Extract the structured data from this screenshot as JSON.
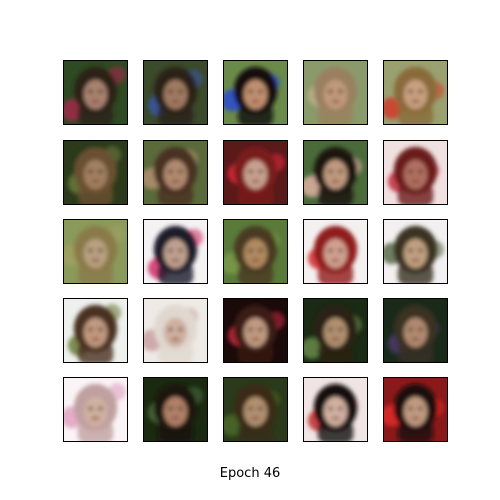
{
  "caption": "Epoch 46",
  "grid": {
    "rows": 5,
    "cols": 5
  },
  "samples": [
    {
      "bg": "#2e4a22",
      "accent": "#a02a4a",
      "hair": "#2a2016",
      "skin": "#a88270"
    },
    {
      "bg": "#3a4a2a",
      "accent": "#3a55a0",
      "hair": "#2a2018",
      "skin": "#a07a62"
    },
    {
      "bg": "#6a8a4a",
      "accent": "#2a4ad0",
      "hair": "#141010",
      "skin": "#c09070"
    },
    {
      "bg": "#8a9a6a",
      "accent": "#c0b090",
      "hair": "#9a8060",
      "skin": "#c09a7a"
    },
    {
      "bg": "#9aa070",
      "accent": "#d03a2a",
      "hair": "#8a6a3a",
      "skin": "#c8a080"
    },
    {
      "bg": "#2a3a1a",
      "accent": "#6a7a3a",
      "hair": "#6a5030",
      "skin": "#a08060"
    },
    {
      "bg": "#5a6a3a",
      "accent": "#b09070",
      "hair": "#4a3020",
      "skin": "#b08a70"
    },
    {
      "bg": "#5a1a1a",
      "accent": "#e02a3a",
      "hair": "#7a1a1a",
      "skin": "#c8a090"
    },
    {
      "bg": "#4a6a3a",
      "accent": "#e0b0a0",
      "hair": "#1a1410",
      "skin": "#c09a80"
    },
    {
      "bg": "#f0e0e0",
      "accent": "#c02a3a",
      "hair": "#6a1a1a",
      "skin": "#b07060"
    },
    {
      "bg": "#8a9a5a",
      "accent": "#a0a060",
      "hair": "#8a7a4a",
      "skin": "#b8a080"
    },
    {
      "bg": "#f4f2f2",
      "accent": "#d0306a",
      "hair": "#1a1a2a",
      "skin": "#c0a090"
    },
    {
      "bg": "#5a7a3a",
      "accent": "#7a9a4a",
      "hair": "#4a3a20",
      "skin": "#b08a60"
    },
    {
      "bg": "#f4f0f0",
      "accent": "#d02a2a",
      "hair": "#901a1a",
      "skin": "#d0a090"
    },
    {
      "bg": "#f2f0f0",
      "accent": "#5a6a4a",
      "hair": "#3a3020",
      "skin": "#c0a080"
    },
    {
      "bg": "#eef0ee",
      "accent": "#6a7a3a",
      "hair": "#4a3020",
      "skin": "#c09a80"
    },
    {
      "bg": "#eeeae6",
      "accent": "#c8a0a0",
      "hair": "#e0d8d0",
      "skin": "#d0b0a0"
    },
    {
      "bg": "#1a0a0a",
      "accent": "#c02a3a",
      "hair": "#3a1a14",
      "skin": "#c09a80"
    },
    {
      "bg": "#1a2a14",
      "accent": "#6a8a4a",
      "hair": "#2a2014",
      "skin": "#b09070"
    },
    {
      "bg": "#1a2a1a",
      "accent": "#4a3a6a",
      "hair": "#3a3024",
      "skin": "#b08a70"
    },
    {
      "bg": "#faf4f6",
      "accent": "#e0a0c0",
      "hair": "#c0a0a0",
      "skin": "#d0b0a0"
    },
    {
      "bg": "#1a2a10",
      "accent": "#4a6a3a",
      "hair": "#1a1410",
      "skin": "#b08068"
    },
    {
      "bg": "#2a3a1a",
      "accent": "#4a6a2a",
      "hair": "#3a2a18",
      "skin": "#b09070"
    },
    {
      "bg": "#f0e4e4",
      "accent": "#c02a2a",
      "hair": "#141010",
      "skin": "#d0b0a0"
    },
    {
      "bg": "#8a1a1a",
      "accent": "#e02a2a",
      "hair": "#1a0e0a",
      "skin": "#c09a80"
    }
  ]
}
